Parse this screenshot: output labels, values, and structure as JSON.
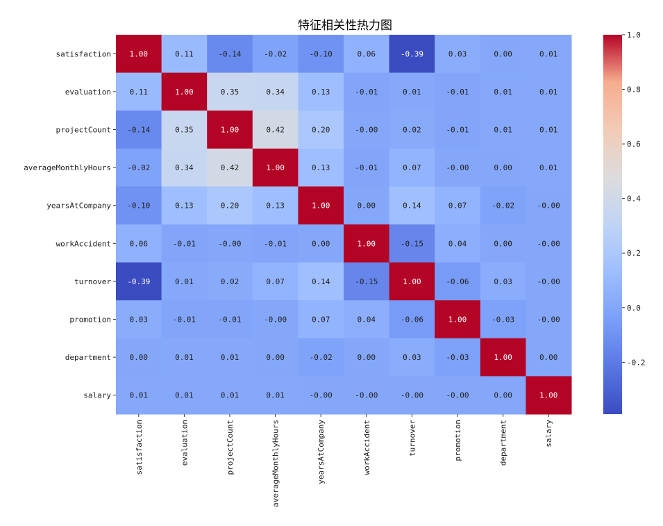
{
  "chart_data": {
    "type": "heatmap",
    "title": "特征相关性热力图",
    "row_labels": [
      "satisfaction",
      "evaluation",
      "projectCount",
      "averageMonthlyHours",
      "yearsAtCompany",
      "workAccident",
      "turnover",
      "promotion",
      "department",
      "salary"
    ],
    "col_labels": [
      "satisfaction",
      "evaluation",
      "projectCount",
      "averageMonthlyHours",
      "yearsAtCompany",
      "workAccident",
      "turnover",
      "promotion",
      "department",
      "salary"
    ],
    "cell_labels": [
      [
        "1.00",
        "0.11",
        "-0.14",
        "-0.02",
        "-0.10",
        "0.06",
        "-0.39",
        "0.03",
        "0.00",
        "0.01"
      ],
      [
        "0.11",
        "1.00",
        "0.35",
        "0.34",
        "0.13",
        "-0.01",
        "0.01",
        "-0.01",
        "0.01",
        "0.01"
      ],
      [
        "-0.14",
        "0.35",
        "1.00",
        "0.42",
        "0.20",
        "-0.00",
        "0.02",
        "-0.01",
        "0.01",
        "0.01"
      ],
      [
        "-0.02",
        "0.34",
        "0.42",
        "1.00",
        "0.13",
        "-0.01",
        "0.07",
        "-0.00",
        "0.00",
        "0.01"
      ],
      [
        "-0.10",
        "0.13",
        "0.20",
        "0.13",
        "1.00",
        "0.00",
        "0.14",
        "0.07",
        "-0.02",
        "-0.00"
      ],
      [
        "0.06",
        "-0.01",
        "-0.00",
        "-0.01",
        "0.00",
        "1.00",
        "-0.15",
        "0.04",
        "0.00",
        "-0.00"
      ],
      [
        "-0.39",
        "0.01",
        "0.02",
        "0.07",
        "0.14",
        "-0.15",
        "1.00",
        "-0.06",
        "0.03",
        "-0.00"
      ],
      [
        "0.03",
        "-0.01",
        "-0.01",
        "-0.00",
        "0.07",
        "0.04",
        "-0.06",
        "1.00",
        "-0.03",
        "-0.00"
      ],
      [
        "0.00",
        "0.01",
        "0.01",
        "0.00",
        "-0.02",
        "0.00",
        "0.03",
        "-0.03",
        "1.00",
        "0.00"
      ],
      [
        "0.01",
        "0.01",
        "0.01",
        "0.01",
        "-0.00",
        "-0.00",
        "-0.00",
        "-0.00",
        "0.00",
        "1.00"
      ]
    ],
    "colormap": "coolwarm",
    "vmin": -0.39,
    "vmax": 1.0,
    "colorbar_ticks": [
      1.0,
      0.8,
      0.6,
      0.4,
      0.2,
      0.0,
      -0.2
    ],
    "colorbar_tick_labels": [
      "1.0",
      "0.8",
      "0.6",
      "0.4",
      "0.2",
      "0.0",
      "-0.2"
    ]
  }
}
